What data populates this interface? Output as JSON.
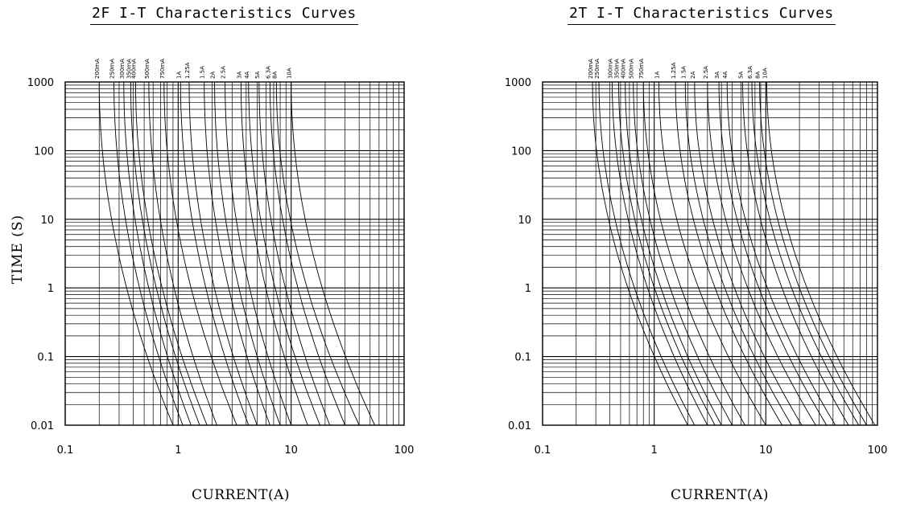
{
  "chart_data": [
    {
      "type": "line",
      "title": "2F I-T Characteristics Curves",
      "xlabel": "CURRENT(A)",
      "ylabel": "TIME (S)",
      "xscale": "log",
      "yscale": "log",
      "xlim": [
        0.1,
        100
      ],
      "ylim": [
        0.01,
        1000
      ],
      "xticks": [
        "0.1",
        "1",
        "10",
        "100"
      ],
      "yticks": [
        "1000",
        "100",
        "10",
        "1",
        "0.1",
        "0.01"
      ],
      "grid": true,
      "legend": "curve labels along top edge",
      "series": [
        {
          "name": "200mA",
          "x_min": 0.2,
          "x_at_0_01s": 0.9
        },
        {
          "name": "250mA",
          "x_min": 0.27,
          "x_at_0_01s": 1.1
        },
        {
          "name": "300mA",
          "x_min": 0.33,
          "x_at_0_01s": 1.3
        },
        {
          "name": "350mA",
          "x_min": 0.38,
          "x_at_0_01s": 1.55
        },
        {
          "name": "400mA",
          "x_min": 0.42,
          "x_at_0_01s": 1.8
        },
        {
          "name": "500mA",
          "x_min": 0.55,
          "x_at_0_01s": 2.2
        },
        {
          "name": "750mA",
          "x_min": 0.75,
          "x_at_0_01s": 3.3
        },
        {
          "name": "1A",
          "x_min": 1.05,
          "x_at_0_01s": 4.2
        },
        {
          "name": "1.25A",
          "x_min": 1.25,
          "x_at_0_01s": 5.0
        },
        {
          "name": "1.5A",
          "x_min": 1.7,
          "x_at_0_01s": 6.5
        },
        {
          "name": "2A",
          "x_min": 2.1,
          "x_at_0_01s": 8.0
        },
        {
          "name": "2.5A",
          "x_min": 2.6,
          "x_at_0_01s": 10.0
        },
        {
          "name": "3A",
          "x_min": 3.6,
          "x_at_0_01s": 14.0
        },
        {
          "name": "4A",
          "x_min": 4.2,
          "x_at_0_01s": 18.0
        },
        {
          "name": "5A",
          "x_min": 5.2,
          "x_at_0_01s": 22.0
        },
        {
          "name": "6.3A",
          "x_min": 6.5,
          "x_at_0_01s": 30.0
        },
        {
          "name": "8A",
          "x_min": 7.4,
          "x_at_0_01s": 40.0
        },
        {
          "name": "10A",
          "x_min": 10.0,
          "x_at_0_01s": 55.0
        }
      ]
    },
    {
      "type": "line",
      "title": "2T I-T Characteristics Curves",
      "xlabel": "CURRENT(A)",
      "ylabel": "",
      "xscale": "log",
      "yscale": "log",
      "xlim": [
        0.1,
        100
      ],
      "ylim": [
        0.01,
        1000
      ],
      "xticks": [
        "0.1",
        "1",
        "10",
        "100"
      ],
      "yticks": [
        "1000",
        "100",
        "10",
        "1",
        "0.1",
        "0.01"
      ],
      "grid": true,
      "legend": "curve labels along top edge",
      "series": [
        {
          "name": "200mA",
          "x_min": 0.28,
          "x_at_0_01s": 2.0
        },
        {
          "name": "250mA",
          "x_min": 0.32,
          "x_at_0_01s": 2.3
        },
        {
          "name": "300mA",
          "x_min": 0.42,
          "x_at_0_01s": 3.0
        },
        {
          "name": "350mA",
          "x_min": 0.48,
          "x_at_0_01s": 3.5
        },
        {
          "name": "400mA",
          "x_min": 0.55,
          "x_at_0_01s": 4.0
        },
        {
          "name": "500mA",
          "x_min": 0.65,
          "x_at_0_01s": 5.0
        },
        {
          "name": "750mA",
          "x_min": 0.8,
          "x_at_0_01s": 6.5
        },
        {
          "name": "1A",
          "x_min": 1.1,
          "x_at_0_01s": 10.0
        },
        {
          "name": "1.25A",
          "x_min": 1.55,
          "x_at_0_01s": 14.0
        },
        {
          "name": "1.5A",
          "x_min": 1.9,
          "x_at_0_01s": 17.0
        },
        {
          "name": "2A",
          "x_min": 2.3,
          "x_at_0_01s": 21.0
        },
        {
          "name": "2.5A",
          "x_min": 3.0,
          "x_at_0_01s": 28.0
        },
        {
          "name": "3A",
          "x_min": 3.8,
          "x_at_0_01s": 35.0
        },
        {
          "name": "4A",
          "x_min": 4.5,
          "x_at_0_01s": 42.0
        },
        {
          "name": "5A",
          "x_min": 6.2,
          "x_at_0_01s": 55.0
        },
        {
          "name": "6.3A",
          "x_min": 7.5,
          "x_at_0_01s": 68.0
        },
        {
          "name": "8A",
          "x_min": 8.8,
          "x_at_0_01s": 80.0
        },
        {
          "name": "10A",
          "x_min": 10.2,
          "x_at_0_01s": 95.0
        }
      ]
    }
  ]
}
